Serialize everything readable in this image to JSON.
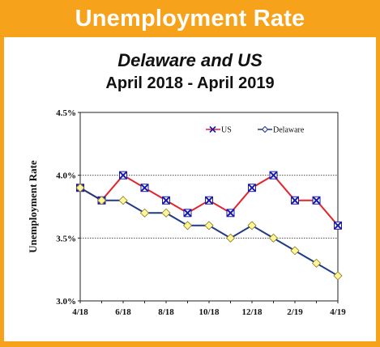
{
  "banner": {
    "title": "Unemployment Rate"
  },
  "chart_data": {
    "type": "line",
    "title": "Delaware and US",
    "subtitle": "April 2018 - April 2019",
    "xlabel": "",
    "ylabel": "Unemployment Rate",
    "x_tick_labels": [
      "4/18",
      "6/18",
      "8/18",
      "10/18",
      "12/18",
      "2/19",
      "4/19"
    ],
    "x_tick_indices": [
      0,
      2,
      4,
      6,
      8,
      10,
      12
    ],
    "y_tick_labels": [
      "4.5%",
      "4.0%",
      "3.5%",
      "3.0%"
    ],
    "y_tick_values": [
      4.5,
      4.0,
      3.5,
      3.0
    ],
    "ylim": [
      3.0,
      4.5
    ],
    "grid": "dotted horizontal at 3.5 and 4.0",
    "legend_position": "top-right",
    "series": [
      {
        "name": "US",
        "color": "#e0262b",
        "marker": "x-square",
        "values": [
          3.9,
          3.8,
          4.0,
          3.9,
          3.8,
          3.7,
          3.8,
          3.7,
          3.9,
          4.0,
          3.8,
          3.8,
          3.6
        ]
      },
      {
        "name": "Delaware",
        "color": "#1f3a86",
        "marker": "diamond",
        "values": [
          3.9,
          3.8,
          3.8,
          3.7,
          3.7,
          3.6,
          3.6,
          3.5,
          3.6,
          3.5,
          3.4,
          3.3,
          3.2
        ]
      }
    ]
  }
}
